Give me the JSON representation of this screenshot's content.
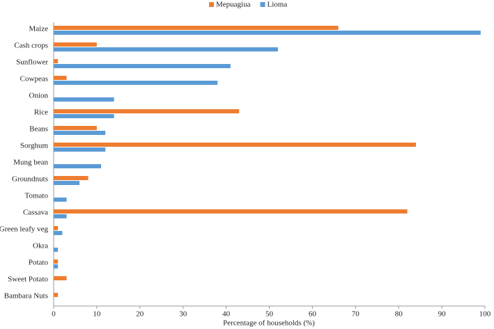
{
  "chart_data": {
    "type": "hbar",
    "x_label": "Percentage of households (%)",
    "categories": [
      "Maize",
      "Cash crops",
      "Sunflower",
      "Cowpeas",
      "Onion",
      "Rice",
      "Beans",
      "Sorghum",
      "Mung bean",
      "Groundnuts",
      "Tomato",
      "Cassava",
      "Green leafy veg",
      "Okra",
      "Potato",
      "Sweet Potato",
      "Bambara Nuts"
    ],
    "series": [
      {
        "name": "Mepuagiua",
        "color": "#ed7d31",
        "values": [
          66,
          10,
          1,
          3,
          0,
          43,
          10,
          84,
          0,
          8,
          0,
          82,
          1,
          0,
          1,
          3,
          1
        ]
      },
      {
        "name": "Lioma",
        "color": "#5b9bd5",
        "values": [
          99,
          52,
          41,
          38,
          14,
          14,
          12,
          12,
          11,
          6,
          3,
          3,
          2,
          1,
          1,
          0,
          0
        ]
      }
    ],
    "xlim": [
      0,
      100
    ],
    "xticks": [
      0,
      10,
      20,
      30,
      40,
      50,
      60,
      70,
      80,
      90,
      100
    ],
    "legend": "top"
  }
}
